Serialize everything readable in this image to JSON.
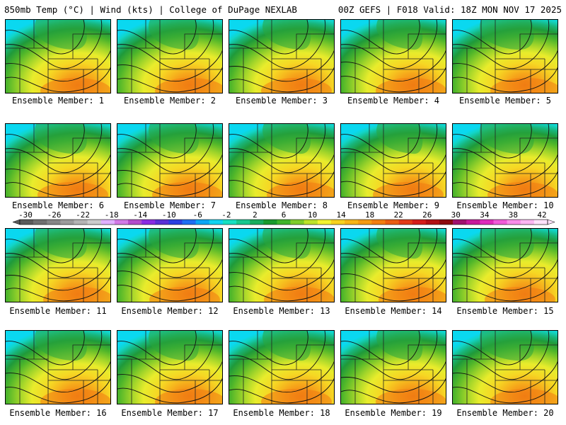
{
  "header": {
    "title": "850mb Temp (°C) | Wind (kts) | College of DuPage NEXLAB",
    "run_info": "00Z GEFS | F018 Valid: 18Z MON NOV 17 2025"
  },
  "panels": [
    {
      "label": "Ensemble Member: 1"
    },
    {
      "label": "Ensemble Member: 2"
    },
    {
      "label": "Ensemble Member: 3"
    },
    {
      "label": "Ensemble Member: 4"
    },
    {
      "label": "Ensemble Member: 5"
    },
    {
      "label": "Ensemble Member: 6"
    },
    {
      "label": "Ensemble Member: 7"
    },
    {
      "label": "Ensemble Member: 8"
    },
    {
      "label": "Ensemble Member: 9"
    },
    {
      "label": "Ensemble Member: 10"
    },
    {
      "label": "Ensemble Member: 11"
    },
    {
      "label": "Ensemble Member: 12"
    },
    {
      "label": "Ensemble Member: 13"
    },
    {
      "label": "Ensemble Member: 14"
    },
    {
      "label": "Ensemble Member: 15"
    },
    {
      "label": "Ensemble Member: 16"
    },
    {
      "label": "Ensemble Member: 17"
    },
    {
      "label": "Ensemble Member: 18"
    },
    {
      "label": "Ensemble Member: 19"
    },
    {
      "label": "Ensemble Member: 20"
    }
  ],
  "colorbar": {
    "tick_labels": [
      "-30",
      "-26",
      "-22",
      "-18",
      "-14",
      "-10",
      "-6",
      "-2",
      "2",
      "6",
      "10",
      "14",
      "18",
      "22",
      "26",
      "30",
      "34",
      "38",
      "42"
    ],
    "colors": [
      "#5a5a5a",
      "#707070",
      "#868686",
      "#9c9c9c",
      "#b4b4b4",
      "#cccccc",
      "#e0b0ff",
      "#d27ae6",
      "#b44ccc",
      "#8a2be2",
      "#5a2fd6",
      "#2a3fe0",
      "#1d6ef2",
      "#0aa6f5",
      "#0fd3f0",
      "#17e0c2",
      "#18c88e",
      "#19ad5d",
      "#1a9a2c",
      "#3fb42a",
      "#7fcc2a",
      "#bde22a",
      "#f2f231",
      "#f7d21f",
      "#f7b516",
      "#f59a12",
      "#f27e10",
      "#ea5d12",
      "#e23a16",
      "#d41c1a",
      "#b20f14",
      "#8c0a0e",
      "#a0106e",
      "#c8189a",
      "#e02bbb",
      "#f05ad7",
      "#f78be8",
      "#fab5f1",
      "#fde0fa"
    ]
  }
}
